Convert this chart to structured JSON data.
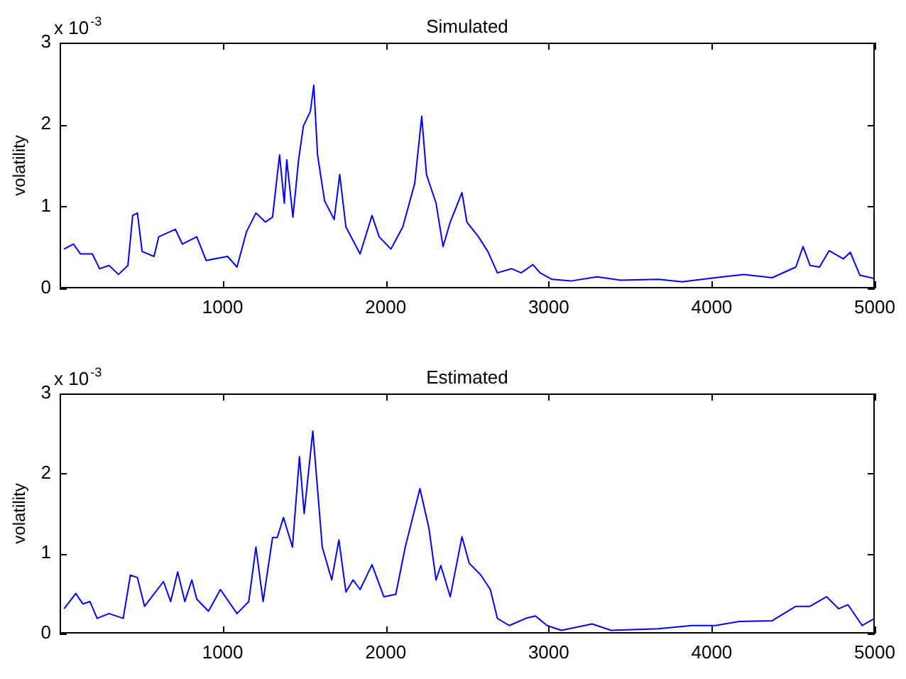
{
  "chart_data": [
    {
      "type": "line",
      "title": "Simulated",
      "ylabel": "volatility",
      "annotations": [
        "x 10$^{-3}$"
      ],
      "x": [
        27,
        85,
        128,
        201,
        245,
        303,
        361,
        419,
        448,
        477,
        506,
        579,
        608,
        710,
        753,
        841,
        899,
        1030,
        1088,
        1146,
        1204,
        1262,
        1306,
        1349,
        1378,
        1393,
        1431,
        1466,
        1495,
        1538,
        1559,
        1582,
        1625,
        1684,
        1718,
        1756,
        1843,
        1916,
        1960,
        2032,
        2105,
        2178,
        2221,
        2250,
        2309,
        2352,
        2396,
        2468,
        2498,
        2569,
        2627,
        2685,
        2773,
        2831,
        2903,
        2947,
        3020,
        3136,
        3296,
        3441,
        3673,
        3819,
        4022,
        4197,
        4371,
        4516,
        4560,
        4603,
        4661,
        4720,
        4807,
        4850,
        4909,
        5000
      ],
      "series": [
        {
          "color": "#0000ff",
          "values": [
            0.48,
            0.54,
            0.42,
            0.42,
            0.24,
            0.28,
            0.17,
            0.28,
            0.89,
            0.92,
            0.45,
            0.39,
            0.63,
            0.72,
            0.54,
            0.63,
            0.34,
            0.39,
            0.26,
            0.69,
            0.92,
            0.81,
            0.87,
            1.63,
            1.04,
            1.57,
            0.87,
            1.57,
            1.98,
            2.16,
            2.48,
            1.63,
            1.07,
            0.84,
            1.39,
            0.75,
            0.42,
            0.89,
            0.63,
            0.48,
            0.75,
            1.28,
            2.1,
            1.39,
            1.04,
            0.51,
            0.81,
            1.17,
            0.81,
            0.63,
            0.45,
            0.19,
            0.24,
            0.19,
            0.29,
            0.19,
            0.11,
            0.09,
            0.14,
            0.1,
            0.11,
            0.08,
            0.13,
            0.17,
            0.13,
            0.26,
            0.51,
            0.28,
            0.26,
            0.46,
            0.36,
            0.44,
            0.16,
            0.12
          ]
        }
      ],
      "xlim": [
        0,
        5000
      ],
      "xticks": [
        1000,
        2000,
        3000,
        4000,
        5000
      ],
      "ylim": [
        0,
        3
      ],
      "yticks": [
        0,
        1,
        2,
        3
      ]
    },
    {
      "type": "line",
      "title": "Estimated",
      "ylabel": "volatility",
      "annotations": [
        "x 10$^{-3}$"
      ],
      "x": [
        27,
        99,
        143,
        186,
        230,
        303,
        390,
        434,
        477,
        521,
        637,
        681,
        724,
        768,
        811,
        841,
        913,
        986,
        1088,
        1160,
        1204,
        1248,
        1306,
        1335,
        1373,
        1428,
        1471,
        1500,
        1553,
        1611,
        1669,
        1713,
        1756,
        1800,
        1843,
        1916,
        1989,
        2062,
        2120,
        2210,
        2265,
        2309,
        2338,
        2396,
        2468,
        2512,
        2584,
        2642,
        2685,
        2758,
        2860,
        2918,
        2990,
        3078,
        3267,
        3383,
        3673,
        3877,
        4022,
        4168,
        4371,
        4516,
        4603,
        4705,
        4778,
        4836,
        4923,
        5000
      ],
      "series": [
        {
          "color": "#0000ff",
          "values": [
            0.31,
            0.5,
            0.37,
            0.4,
            0.19,
            0.25,
            0.19,
            0.73,
            0.7,
            0.34,
            0.65,
            0.4,
            0.77,
            0.4,
            0.67,
            0.43,
            0.28,
            0.55,
            0.25,
            0.4,
            1.08,
            0.4,
            1.2,
            1.2,
            1.45,
            1.08,
            2.21,
            1.5,
            2.53,
            1.08,
            0.67,
            1.17,
            0.52,
            0.67,
            0.55,
            0.86,
            0.46,
            0.49,
            1.08,
            1.81,
            1.32,
            0.67,
            0.85,
            0.46,
            1.21,
            0.88,
            0.73,
            0.55,
            0.19,
            0.1,
            0.19,
            0.22,
            0.1,
            0.04,
            0.12,
            0.04,
            0.06,
            0.1,
            0.1,
            0.15,
            0.16,
            0.34,
            0.34,
            0.46,
            0.31,
            0.36,
            0.1,
            0.19
          ]
        }
      ],
      "xlim": [
        0,
        5000
      ],
      "xticks": [
        1000,
        2000,
        3000,
        4000,
        5000
      ],
      "ylim": [
        0,
        3
      ],
      "yticks": [
        0,
        1,
        2,
        3
      ]
    }
  ]
}
